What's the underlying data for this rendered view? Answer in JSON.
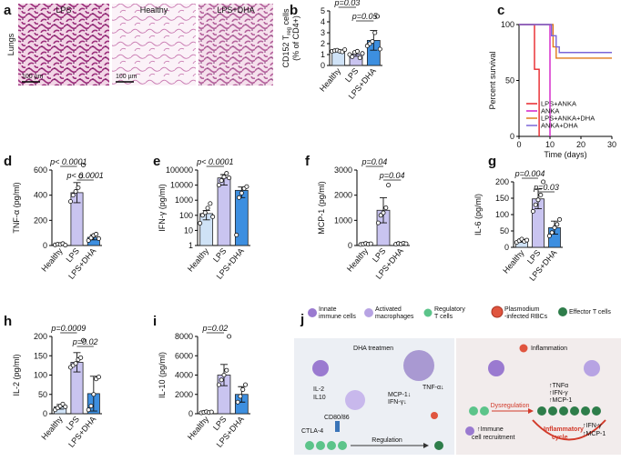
{
  "panel_labels": [
    "a",
    "b",
    "c",
    "d",
    "e",
    "f",
    "g",
    "h",
    "i",
    "j"
  ],
  "images": {
    "organ": "Lungs",
    "panels": [
      "LPS",
      "Healthy",
      "LPS+DHA"
    ],
    "scale_bar": "100 µm"
  },
  "chart_data": [
    {
      "type": "bar",
      "ylabel": {
        "text": "CD152 T",
        "subscript": "reg",
        "after": " cells",
        "line2": "(% of CD4+)"
      },
      "categories": [
        "Healthy",
        "LPS",
        "LPS+DHA"
      ],
      "colors": [
        "#cfe2f6",
        "#c9c4f0",
        "#3d8fe0"
      ],
      "values": [
        1.35,
        1.05,
        2.3
      ],
      "errors": [
        0.08,
        0.2,
        0.9
      ],
      "points": [
        [
          1.3,
          1.35,
          1.4,
          1.3,
          1.25,
          1.45
        ],
        [
          1.0,
          0.8,
          1.2,
          1.3,
          0.7,
          1.1
        ],
        [
          1.8,
          2.0,
          2.2,
          3.0,
          4.5,
          1.5
        ]
      ],
      "ylim": [
        0,
        5
      ],
      "yticks": [
        0,
        1,
        2,
        3,
        4,
        5
      ],
      "annotations": [
        {
          "text": "p=0.03",
          "between": [
            "Healthy",
            "LPS"
          ]
        },
        {
          "text": "p=0.05",
          "between": [
            "LPS",
            "LPS+DHA"
          ]
        }
      ]
    },
    {
      "type": "line",
      "ylabel": "Percent survival",
      "xlabel": "Time (days)",
      "series": [
        {
          "name": "LPS+ANKA",
          "color": "#e8262b",
          "x": [
            0,
            5,
            6.5
          ],
          "values": [
            100,
            60,
            0
          ]
        },
        {
          "name": "ANKA",
          "color": "#d21fc8",
          "x": [
            0,
            10
          ],
          "values": [
            100,
            0
          ]
        },
        {
          "name": "LPS+ANKA+DHA",
          "color": "#e07a1a",
          "x": [
            0,
            11,
            12,
            30
          ],
          "values": [
            100,
            80,
            70,
            70
          ]
        },
        {
          "name": "ANKA+DHA",
          "color": "#7a66d8",
          "x": [
            0,
            10.5,
            12,
            13,
            30
          ],
          "values": [
            100,
            90,
            80,
            75,
            75
          ]
        }
      ],
      "xlim": [
        0,
        30
      ],
      "xticks": [
        0,
        10,
        20,
        30
      ],
      "ylim": [
        0,
        100
      ],
      "yticks": [
        0,
        50,
        100
      ],
      "legend": "lower-left"
    },
    {
      "type": "bar",
      "ylabel": "TNF-α (pg/ml)",
      "categories": [
        "Healthy",
        "LPS",
        "LPS+DHA"
      ],
      "colors": [
        "#cfe2f6",
        "#c9c4f0",
        "#3d8fe0"
      ],
      "values": [
        10,
        420,
        65
      ],
      "errors": [
        5,
        80,
        20
      ],
      "points": [
        [
          5,
          10,
          8,
          15,
          3
        ],
        [
          350,
          400,
          430,
          460,
          550,
          640
        ],
        [
          40,
          60,
          80,
          90,
          55
        ]
      ],
      "ylim": [
        0,
        600
      ],
      "yticks": [
        0,
        200,
        400,
        600
      ],
      "annotations": [
        {
          "text": "p< 0.0001",
          "between": [
            "Healthy",
            "LPS"
          ]
        },
        {
          "text": "p< 0.0001",
          "between": [
            "LPS",
            "LPS+DHA"
          ]
        }
      ]
    },
    {
      "type": "bar",
      "log": true,
      "ylabel": "IFN-γ (pg/ml)",
      "categories": [
        "Healthy",
        "LPS",
        "LPS+DHA"
      ],
      "colors": [
        "#cfe2f6",
        "#c9c4f0",
        "#3d8fe0"
      ],
      "values": [
        130,
        30000,
        4500
      ],
      "errors": [
        80,
        20000,
        3000
      ],
      "points": [
        [
          30,
          100,
          150,
          300,
          600,
          80
        ],
        [
          10000,
          20000,
          35000,
          60000,
          30000
        ],
        [
          5,
          1500,
          3000,
          6000,
          8000
        ]
      ],
      "ylim": [
        1,
        100000
      ],
      "yticks": [
        1,
        10,
        100,
        1000,
        10000,
        100000
      ],
      "annotations": [
        {
          "text": "p< 0.0001",
          "between": [
            "Healthy",
            "LPS"
          ]
        }
      ]
    },
    {
      "type": "bar",
      "ylabel": "MCP-1 (pg/ml)",
      "categories": [
        "Healthy",
        "LPS",
        "LPS+DHA"
      ],
      "colors": [
        "#cfe2f6",
        "#c9c4f0",
        "#3d8fe0"
      ],
      "values": [
        60,
        1400,
        70
      ],
      "errors": [
        20,
        500,
        15
      ],
      "points": [
        [
          40,
          60,
          80,
          50,
          70
        ],
        [
          900,
          1200,
          1300,
          1500,
          2400
        ],
        [
          50,
          80,
          60,
          90,
          70
        ]
      ],
      "ylim": [
        0,
        3000
      ],
      "yticks": [
        0,
        1000,
        2000,
        3000
      ],
      "annotations": [
        {
          "text": "p=0.04",
          "between": [
            "Healthy",
            "LPS"
          ]
        },
        {
          "text": "p=0.04",
          "between": [
            "LPS",
            "LPS+DHA"
          ]
        }
      ]
    },
    {
      "type": "bar",
      "ylabel": "IL-6 (pg/ml)",
      "categories": [
        "Healthy",
        "LPS",
        "LPS+DHA"
      ],
      "colors": [
        "#cfe2f6",
        "#c9c4f0",
        "#3d8fe0"
      ],
      "values": [
        20,
        148,
        60
      ],
      "errors": [
        4,
        30,
        20
      ],
      "points": [
        [
          15,
          20,
          25,
          18,
          22
        ],
        [
          110,
          130,
          145,
          160,
          200
        ],
        [
          35,
          45,
          60,
          70,
          85
        ]
      ],
      "ylim": [
        0,
        200
      ],
      "yticks": [
        0,
        50,
        100,
        150,
        200
      ],
      "annotations": [
        {
          "text": "p=0.004",
          "between": [
            "Healthy",
            "LPS"
          ]
        },
        {
          "text": "p=0.03",
          "between": [
            "LPS",
            "LPS+DHA"
          ]
        }
      ]
    },
    {
      "type": "bar",
      "ylabel": "IL-2 (pg/ml)",
      "categories": [
        "Healthy",
        "LPS",
        "LPS+DHA"
      ],
      "colors": [
        "#cfe2f6",
        "#c9c4f0",
        "#3d8fe0"
      ],
      "values": [
        18,
        133,
        52
      ],
      "errors": [
        6,
        25,
        45
      ],
      "points": [
        [
          10,
          15,
          20,
          25,
          18
        ],
        [
          120,
          125,
          130,
          140,
          145,
          190
        ],
        [
          10,
          20,
          50,
          90,
          95
        ]
      ],
      "ylim": [
        0,
        200
      ],
      "yticks": [
        0,
        50,
        100,
        150,
        200
      ],
      "annotations": [
        {
          "text": "p=0.0009",
          "between": [
            "Healthy",
            "LPS"
          ]
        },
        {
          "text": "p=0.02",
          "between": [
            "LPS",
            "LPS+DHA"
          ]
        }
      ]
    },
    {
      "type": "bar",
      "ylabel": "IL-10 (pg/ml)",
      "categories": [
        "Healthy",
        "LPS",
        "LPS+DHA"
      ],
      "colors": [
        "#cfe2f6",
        "#c9c4f0",
        "#3d8fe0"
      ],
      "values": [
        150,
        4000,
        2000
      ],
      "errors": [
        50,
        1100,
        800
      ],
      "points": [
        [
          100,
          150,
          200,
          120,
          180
        ],
        [
          3000,
          3500,
          4000,
          4500,
          8000
        ],
        [
          1200,
          1800,
          2500,
          3000
        ]
      ],
      "ylim": [
        0,
        8000
      ],
      "yticks": [
        0,
        2000,
        4000,
        6000,
        8000
      ],
      "annotations": [
        {
          "text": "p=0.02",
          "between": [
            "Healthy",
            "LPS"
          ]
        }
      ]
    }
  ],
  "diagram": {
    "legend": [
      [
        "Innate",
        "immune cells"
      ],
      [
        "Activated",
        "macrophages"
      ],
      [
        "Regulatory",
        "T cells"
      ],
      [
        "Plasmodium",
        "-infected RBCs"
      ],
      [
        "Effector T cells"
      ]
    ],
    "left": {
      "title": "DHA treatmen",
      "cytokines": [
        "IL-2",
        "IL10"
      ],
      "decreased": [
        "TNF-α↓",
        "MCP-1↓",
        "IFN-γ↓"
      ],
      "receptor": "CD80/86",
      "checkpoint": "CTLA-4",
      "arrow": "Regulation"
    },
    "right": {
      "title": "Inflammation",
      "increased": [
        "↑TNFα",
        "↑IFN-γ",
        "↑MCP-1"
      ],
      "arrow": "Dysregulation",
      "recruitment": [
        "↑Immune",
        "cell recruitment"
      ],
      "cycle": [
        "Inflammatory",
        "cycle"
      ],
      "outcome": [
        "↑IFN-γ",
        "↑MCP-1"
      ]
    }
  }
}
